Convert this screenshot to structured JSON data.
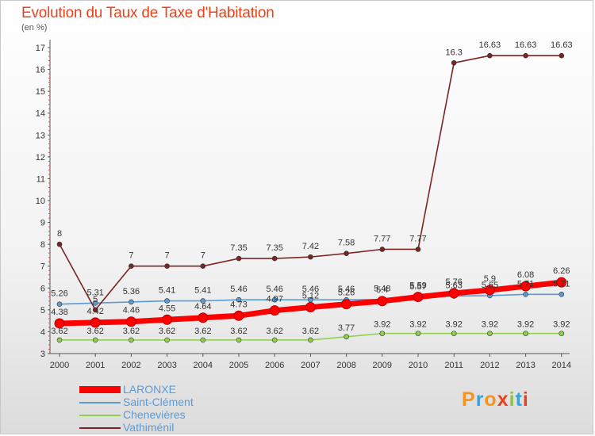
{
  "header": {
    "title": "Evolution du Taux de Taxe d'Habitation",
    "subtitle": "(en %)"
  },
  "chart_data": {
    "type": "line",
    "title": "Evolution du Taux de Taxe d'Habitation",
    "ylabel": "(en %)",
    "xlabel": "",
    "ylim": [
      3,
      17
    ],
    "grid": false,
    "x": [
      2000,
      2001,
      2002,
      2003,
      2004,
      2005,
      2006,
      2007,
      2008,
      2009,
      2010,
      2011,
      2012,
      2013,
      2014
    ],
    "y_ticks": [
      3,
      4,
      5,
      6,
      7,
      8,
      9,
      10,
      11,
      12,
      13,
      14,
      15,
      16,
      17
    ],
    "series": [
      {
        "name": "LARONXE",
        "color": "#ff0000",
        "values": [
          4.38,
          4.42,
          4.46,
          4.55,
          4.64,
          4.73,
          4.97,
          5.12,
          5.26,
          5.4,
          5.59,
          5.76,
          5.9,
          6.08,
          6.26
        ],
        "labels": [
          "4.38",
          "4.42",
          "4.46",
          "4.55",
          "4.64",
          "4.73",
          "4.97",
          "5.12",
          "5.26",
          "5.4",
          "5.59",
          "5.76",
          "5.9",
          "6.08",
          "6.26"
        ]
      },
      {
        "name": "Saint-Clément",
        "color": "#5b9bd5",
        "values": [
          5.26,
          5.31,
          5.36,
          5.41,
          5.41,
          5.46,
          5.46,
          5.46,
          5.46,
          5.48,
          5.57,
          5.63,
          5.65,
          5.71,
          5.71
        ],
        "labels": [
          "5.26",
          "5.31",
          "5.36",
          "5.41",
          "5.41",
          "5.46",
          "5.46",
          "5.46",
          "5.46",
          "5.48",
          "5.57",
          "5.63",
          "5.65",
          "5.71",
          "5.71"
        ]
      },
      {
        "name": "Chenevières",
        "color": "#8fd14f",
        "values": [
          3.62,
          3.62,
          3.62,
          3.62,
          3.62,
          3.62,
          3.62,
          3.62,
          3.77,
          3.92,
          3.92,
          3.92,
          3.92,
          3.92,
          3.92
        ],
        "labels": [
          "3.62",
          "3.62",
          "3.62",
          "3.62",
          "3.62",
          "3.62",
          "3.62",
          "3.62",
          "3.77",
          "3.92",
          "3.92",
          "3.92",
          "3.92",
          "3.92",
          "3.92"
        ]
      },
      {
        "name": "Vathiménil",
        "color": "#7b2424",
        "values": [
          8.0,
          5.0,
          7.0,
          7.0,
          7.0,
          7.35,
          7.35,
          7.42,
          7.58,
          7.77,
          7.77,
          16.3,
          16.63,
          16.63,
          16.63
        ],
        "labels": [
          "8",
          "5",
          "7",
          "7",
          "7",
          "7.35",
          "7.35",
          "7.42",
          "7.58",
          "7.77",
          "7.77",
          "16.3",
          "16.63",
          "16.63",
          "16.63"
        ]
      }
    ],
    "legend_position": "bottom-left"
  },
  "logo": {
    "text": "Proxiti",
    "colors": [
      "#f7941d",
      "#3aa0dc",
      "#8cc63f",
      "#e8431a"
    ]
  }
}
